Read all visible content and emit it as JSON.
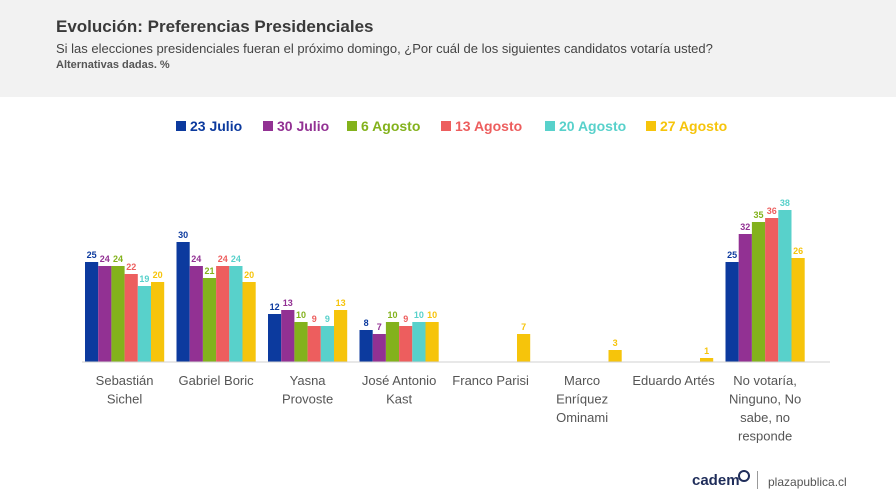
{
  "header": {
    "title": "Evolución: Preferencias Presidenciales",
    "subtitle": "Si las elecciones presidenciales fueran el próximo domingo, ¿Por cuál de los siguientes candidatos votaría usted?",
    "note": "Alternativas dadas. %"
  },
  "chart_data": {
    "type": "bar",
    "title": "",
    "xlabel": "",
    "ylabel": "",
    "ylim": [
      0,
      40
    ],
    "grid": false,
    "legend_position": "top-center",
    "data_labels": true,
    "categories": [
      "Sebastián\nSichel",
      "Gabriel Boric",
      "Yasna\nProvoste",
      "José Antonio\nKast",
      "Franco Parisi",
      "Marco\nEnríquez\nOminami",
      "Eduardo Artés",
      "No votaría,\nNinguno, No\nsabe, no\nresponde"
    ],
    "series": [
      {
        "name": "23 Julio",
        "color": "#0c3a9e",
        "values": [
          25,
          30,
          12,
          8,
          null,
          null,
          null,
          25
        ]
      },
      {
        "name": "30 Julio",
        "color": "#923193",
        "values": [
          24,
          24,
          13,
          7,
          null,
          null,
          null,
          32
        ]
      },
      {
        "name": "6 Agosto",
        "color": "#83b21c",
        "values": [
          24,
          21,
          10,
          10,
          null,
          null,
          null,
          35
        ]
      },
      {
        "name": "13 Agosto",
        "color": "#ed5e5e",
        "values": [
          22,
          24,
          9,
          9,
          null,
          null,
          null,
          36
        ]
      },
      {
        "name": "20 Agosto",
        "color": "#58d1cb",
        "values": [
          19,
          24,
          9,
          10,
          null,
          null,
          null,
          38
        ]
      },
      {
        "name": "27 Agosto",
        "color": "#f6c40b",
        "values": [
          20,
          20,
          13,
          10,
          7,
          3,
          1,
          26
        ]
      }
    ]
  },
  "footer": {
    "logo": "cadem",
    "site": "plazapublica.cl"
  },
  "icons": {
    "logo_mark": "ring-icon"
  }
}
